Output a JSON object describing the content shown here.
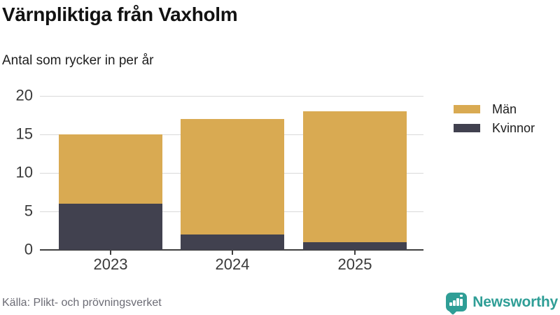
{
  "header": {
    "title": "Värnpliktiga från Vaxholm",
    "subtitle": "Antal som rycker in per år"
  },
  "chart_data": {
    "type": "bar",
    "stacked": true,
    "title": "Värnpliktiga från Vaxholm",
    "subtitle": "Antal som rycker in per år",
    "categories": [
      "2023",
      "2024",
      "2025"
    ],
    "series": [
      {
        "name": "Män",
        "color": "#D9AA52",
        "values": [
          9,
          15,
          17
        ]
      },
      {
        "name": "Kvinnor",
        "color": "#41414F",
        "values": [
          6,
          2,
          1
        ]
      }
    ],
    "stack_bottom_to_top": [
      "Kvinnor",
      "Män"
    ],
    "totals": [
      15,
      17,
      18
    ],
    "xlabel": "",
    "ylabel": "",
    "ylim": [
      0,
      20
    ],
    "yticks": [
      0,
      5,
      10,
      15,
      20
    ],
    "grid": true,
    "gridline_color": "#D9D9D9",
    "axis_color": "#3F3F3F",
    "legend_position": "right"
  },
  "legend": {
    "items": [
      {
        "label": "Män",
        "color": "#D9AA52"
      },
      {
        "label": "Kvinnor",
        "color": "#41414F"
      }
    ]
  },
  "footer": {
    "source": "Källa: Plikt- och prövningsverket",
    "brand_name": "Newsworthy",
    "brand_color": "#2F9E96"
  }
}
